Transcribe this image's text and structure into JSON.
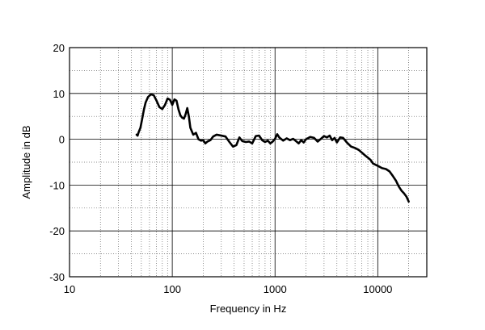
{
  "chart_data": {
    "type": "line",
    "xlabel": "Frequency in Hz",
    "ylabel": "Amplitude in dB",
    "x_scale": "log",
    "xlim": [
      10,
      30000
    ],
    "ylim": [
      -30,
      20
    ],
    "grid": true,
    "x_ticks": [
      10,
      100,
      1000,
      10000
    ],
    "x_tick_labels": [
      "10",
      "100",
      "1000",
      "10000"
    ],
    "y_ticks": [
      20,
      10,
      0,
      -10,
      -20,
      -30
    ],
    "y_tick_labels": [
      "20",
      "10",
      "0",
      "-10",
      "-20",
      "-30"
    ],
    "series": [
      {
        "color": "#000000",
        "points": [
          [
            45,
            1.0
          ],
          [
            46,
            0.8
          ],
          [
            47,
            1.5
          ],
          [
            49,
            2.5
          ],
          [
            51,
            4.5
          ],
          [
            53,
            6.5
          ],
          [
            55,
            8.0
          ],
          [
            58,
            9.2
          ],
          [
            62,
            9.8
          ],
          [
            66,
            9.6
          ],
          [
            70,
            8.5
          ],
          [
            75,
            7.0
          ],
          [
            80,
            6.6
          ],
          [
            85,
            7.5
          ],
          [
            90,
            8.9
          ],
          [
            95,
            8.6
          ],
          [
            100,
            7.5
          ],
          [
            105,
            8.7
          ],
          [
            110,
            8.4
          ],
          [
            115,
            6.5
          ],
          [
            120,
            5.2
          ],
          [
            125,
            4.7
          ],
          [
            130,
            4.5
          ],
          [
            135,
            5.5
          ],
          [
            140,
            6.8
          ],
          [
            145,
            5.0
          ],
          [
            150,
            2.5
          ],
          [
            160,
            1.0
          ],
          [
            170,
            1.4
          ],
          [
            180,
            0.0
          ],
          [
            190,
            -0.3
          ],
          [
            200,
            -0.2
          ],
          [
            210,
            -0.9
          ],
          [
            220,
            -0.5
          ],
          [
            235,
            -0.2
          ],
          [
            250,
            0.6
          ],
          [
            270,
            1.0
          ],
          [
            300,
            0.8
          ],
          [
            330,
            0.6
          ],
          [
            360,
            -0.6
          ],
          [
            390,
            -1.6
          ],
          [
            420,
            -1.3
          ],
          [
            450,
            0.4
          ],
          [
            480,
            -0.4
          ],
          [
            520,
            -0.6
          ],
          [
            560,
            -0.5
          ],
          [
            600,
            -0.9
          ],
          [
            650,
            0.7
          ],
          [
            700,
            0.8
          ],
          [
            750,
            -0.2
          ],
          [
            800,
            -0.6
          ],
          [
            850,
            -0.3
          ],
          [
            900,
            -0.9
          ],
          [
            950,
            -0.5
          ],
          [
            1000,
            0.1
          ],
          [
            1050,
            1.1
          ],
          [
            1100,
            0.4
          ],
          [
            1200,
            -0.3
          ],
          [
            1300,
            0.2
          ],
          [
            1400,
            -0.2
          ],
          [
            1500,
            0.1
          ],
          [
            1600,
            -0.4
          ],
          [
            1700,
            -0.9
          ],
          [
            1800,
            -0.2
          ],
          [
            1900,
            -0.7
          ],
          [
            2000,
            0.0
          ],
          [
            2200,
            0.5
          ],
          [
            2400,
            0.3
          ],
          [
            2600,
            -0.5
          ],
          [
            2800,
            0.1
          ],
          [
            3000,
            0.7
          ],
          [
            3200,
            0.4
          ],
          [
            3400,
            0.8
          ],
          [
            3600,
            -0.2
          ],
          [
            3800,
            0.3
          ],
          [
            4000,
            -0.7
          ],
          [
            4300,
            0.4
          ],
          [
            4600,
            0.3
          ],
          [
            5000,
            -0.7
          ],
          [
            5500,
            -1.6
          ],
          [
            6000,
            -1.9
          ],
          [
            6500,
            -2.3
          ],
          [
            7000,
            -2.9
          ],
          [
            7500,
            -3.5
          ],
          [
            8000,
            -4.0
          ],
          [
            8500,
            -4.5
          ],
          [
            9000,
            -5.3
          ],
          [
            10000,
            -5.8
          ],
          [
            11000,
            -6.3
          ],
          [
            12000,
            -6.5
          ],
          [
            13000,
            -7.0
          ],
          [
            14000,
            -8.0
          ],
          [
            15000,
            -9.0
          ],
          [
            16000,
            -10.3
          ],
          [
            17000,
            -11.2
          ],
          [
            18000,
            -11.8
          ],
          [
            19000,
            -12.5
          ],
          [
            20000,
            -13.6
          ]
        ]
      }
    ]
  }
}
